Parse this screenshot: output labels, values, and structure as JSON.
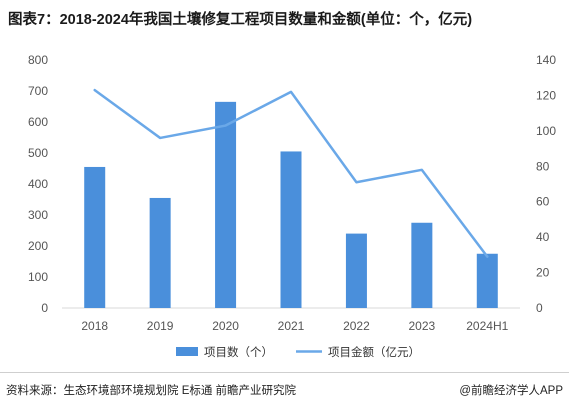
{
  "title": "图表7：2018-2024年我国土壤修复工程项目数量和金额(单位：个，亿元)",
  "source": "资料来源：生态环境部环境规划院 E标通 前瞻产业研究院",
  "credit": "@前瞻经济学人APP",
  "colors": {
    "bar": "#4a8fdb",
    "line": "#6aa8e8",
    "axis_text": "#555555"
  },
  "chart_data": {
    "type": "bar",
    "categories": [
      "2018",
      "2019",
      "2020",
      "2021",
      "2022",
      "2023",
      "2024H1"
    ],
    "series": [
      {
        "name": "项目数（个）",
        "type": "bar",
        "axis": "left",
        "values": [
          455,
          355,
          665,
          505,
          240,
          275,
          175
        ]
      },
      {
        "name": "项目金额（亿元）",
        "type": "line",
        "axis": "right",
        "values": [
          123,
          96,
          103,
          122,
          71,
          78,
          29
        ]
      }
    ],
    "y_left": {
      "ylim": [
        0,
        800
      ],
      "ticks": [
        "0",
        "100",
        "200",
        "300",
        "400",
        "500",
        "600",
        "700",
        "800"
      ]
    },
    "y_right": {
      "ylim": [
        0,
        140
      ],
      "ticks": [
        "0",
        "20",
        "40",
        "60",
        "80",
        "100",
        "120",
        "140"
      ]
    },
    "grid": false,
    "legend_position": "bottom-center"
  }
}
